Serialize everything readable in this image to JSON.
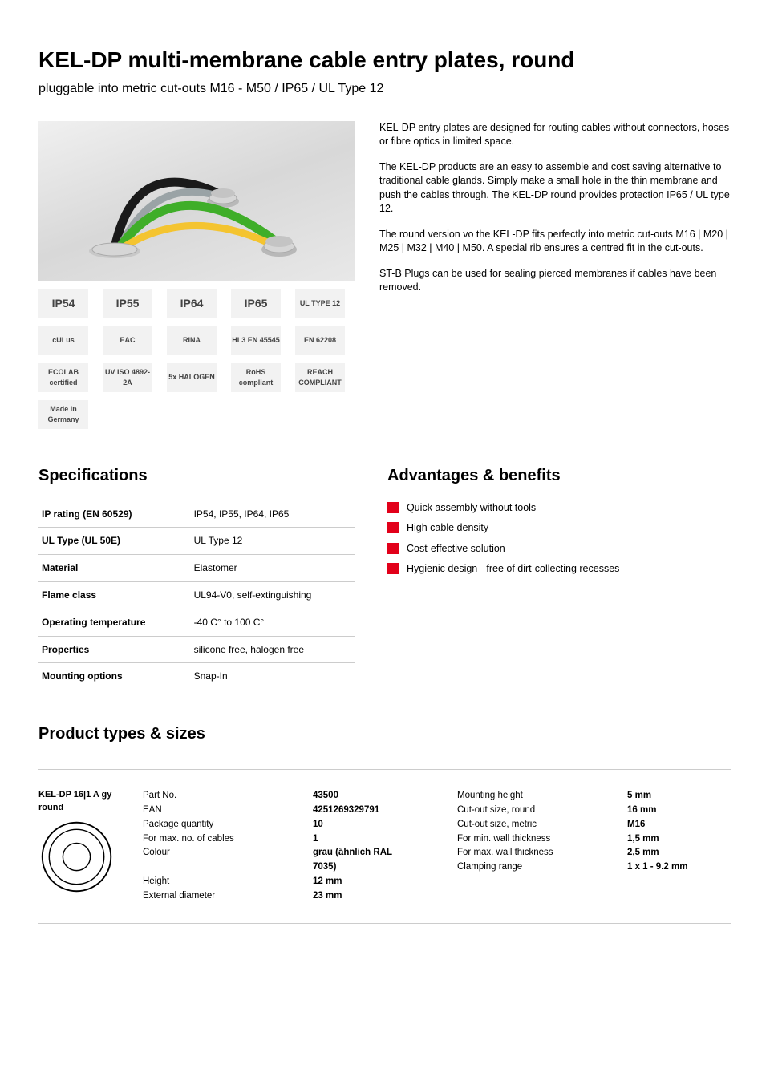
{
  "title": "KEL-DP multi-membrane cable entry plates, round",
  "subtitle": "pluggable into metric cut-outs M16 - M50 / IP65 / UL Type 12",
  "description": [
    "KEL-DP entry plates are designed for routing cables without connectors, hoses or fibre optics in limited space.",
    "The KEL-DP products are an easy to assemble and cost saving alternative to traditional cable glands. Simply make a small hole in the thin membrane and push the cables through. The KEL-DP round provides protection IP65 / UL type 12.",
    "The round version vo the KEL-DP fits perfectly into metric cut-outs M16 | M20 | M25 | M32 | M40 | M50. A special rib ensures a centred fit in the cut-outs.",
    "ST-B Plugs can be used for sealing pierced membranes if cables have been removed."
  ],
  "badges": [
    {
      "label": "IP54",
      "size": "big"
    },
    {
      "label": "IP55",
      "size": "big"
    },
    {
      "label": "IP64",
      "size": "big"
    },
    {
      "label": "IP65",
      "size": "big"
    },
    {
      "label": "UL TYPE 12"
    },
    {
      "label": "cULus"
    },
    {
      "label": "EAC"
    },
    {
      "label": "RINA"
    },
    {
      "label": "HL3 EN 45545"
    },
    {
      "label": "EN 62208"
    },
    {
      "label": "ECOLAB certified"
    },
    {
      "label": "UV ISO 4892-2A"
    },
    {
      "label": "5x HALOGEN"
    },
    {
      "label": "RoHS compliant"
    },
    {
      "label": "REACH COMPLIANT"
    },
    {
      "label": "Made in Germany"
    }
  ],
  "colors": {
    "accent": "#e2001a",
    "badge_bg": "#f2f2f2",
    "rule": "#cccccc"
  },
  "cables": [
    {
      "color": "#1a1a1a"
    },
    {
      "color": "#9aa3a6"
    },
    {
      "color": "#3fae29"
    },
    {
      "color": "#f4c430"
    }
  ],
  "sections": {
    "specs_title": "Specifications",
    "advantages_title": "Advantages & benefits",
    "ptypes_title": "Product types & sizes"
  },
  "specs": [
    {
      "k": "IP rating (EN 60529)",
      "v": "IP54, IP55, IP64, IP65"
    },
    {
      "k": "UL Type (UL 50E)",
      "v": "UL Type 12"
    },
    {
      "k": "Material",
      "v": "Elastomer"
    },
    {
      "k": "Flame class",
      "v": "UL94-V0, self-extinguishing"
    },
    {
      "k": "Operating temperature",
      "v": "-40 C° to 100 C°"
    },
    {
      "k": "Properties",
      "v": "silicone free, halogen free"
    },
    {
      "k": "Mounting options",
      "v": "Snap-In"
    }
  ],
  "advantages": [
    "Quick assembly without tools",
    "High cable density",
    "Cost-effective solution",
    "Hygienic design - free of dirt-collecting recesses"
  ],
  "variant": {
    "name": "KEL-DP 16|1 A gy round",
    "left": [
      {
        "k": "Part No.",
        "v": "43500"
      },
      {
        "k": "EAN",
        "v": "4251269329791"
      },
      {
        "k": "Package quantity",
        "v": "10"
      },
      {
        "k": "For max. no. of cables",
        "v": "1"
      },
      {
        "k": "Colour",
        "v": "grau (ähnlich RAL 7035)"
      },
      {
        "k": "Height",
        "v": "12 mm"
      },
      {
        "k": "External diameter",
        "v": "23 mm"
      }
    ],
    "right": [
      {
        "k": "Mounting height",
        "v": "5 mm"
      },
      {
        "k": "Cut-out size, round",
        "v": "16 mm"
      },
      {
        "k": "Cut-out size, metric",
        "v": "M16"
      },
      {
        "k": "For min. wall thickness",
        "v": "1,5 mm"
      },
      {
        "k": "For max. wall thickness",
        "v": "2,5 mm"
      },
      {
        "k": "Clamping range",
        "v": "1 x 1 - 9.2 mm"
      }
    ]
  }
}
